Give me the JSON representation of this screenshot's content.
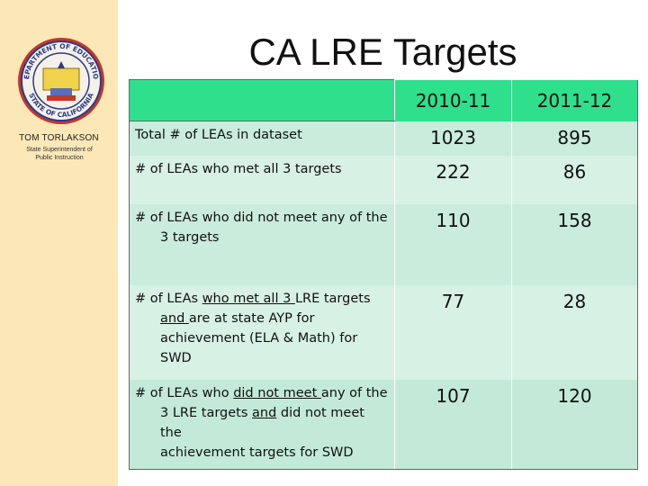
{
  "slide": {
    "title": "CA LRE Targets"
  },
  "sidebar": {
    "official_name": "TOM TORLAKSON",
    "official_title": "State Superintendent of Public Instruction",
    "seal_text_top": "DEPARTMENT OF EDUCATION",
    "seal_text_bottom": "STATE OF CALIFORNIA"
  },
  "table": {
    "columns": [
      "2010-11",
      "2011-12"
    ],
    "rows": [
      {
        "label_parts": [
          {
            "text": "Total # of LEAs in dataset",
            "u": false
          }
        ],
        "values": [
          "1023",
          "895"
        ]
      },
      {
        "label_parts": [
          {
            "text": "# of LEAs who met all 3 targets",
            "u": false
          }
        ],
        "values": [
          "222",
          "86"
        ]
      },
      {
        "label_first": "# of LEAs who did not meet any of the",
        "label_rest": "3 targets",
        "values": [
          "110",
          "158"
        ]
      },
      {
        "label_first_a": "# of LEAs ",
        "label_first_b": "who met all 3 ",
        "label_first_c": "LRE targets",
        "label_line2_a": "and ",
        "label_line2_b": "are at state AYP for",
        "label_line3": "achievement (ELA & Math) for",
        "label_line4": "SWD",
        "values": [
          "77",
          "28"
        ]
      },
      {
        "label_first_a": "# of LEAs who ",
        "label_first_b": "did not meet ",
        "label_first_c": "any of the",
        "label_line2_a": "3 LRE targets ",
        "label_line2_b": "and",
        "label_line2_c": " did not meet the",
        "label_line3": "achievement targets for SWD",
        "values": [
          "107",
          "120"
        ]
      }
    ]
  }
}
